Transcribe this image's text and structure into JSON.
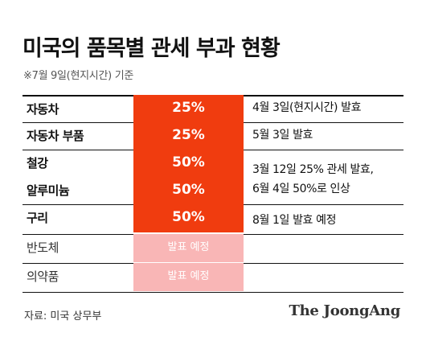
{
  "title": "미국의 품목별 관세 부과 현황",
  "subtitle": "※7월 9일(현지시간) 기준",
  "chart_data": {
    "type": "table",
    "rows": [
      {
        "item": "자동차",
        "rate": "25%",
        "highlight": "#f03c0f"
      },
      {
        "item": "자동차 부품",
        "rate": "25%",
        "highlight": "#f03c0f"
      },
      {
        "item": "철강",
        "rate": "50%",
        "highlight": "#f03c0f"
      },
      {
        "item": "알루미늄",
        "rate": "50%",
        "highlight": "#f03c0f"
      },
      {
        "item": "구리",
        "rate": "50%",
        "highlight": "#f03c0f"
      },
      {
        "item": "반도체",
        "rate": "발표 예정",
        "highlight": "#f9b6b6"
      },
      {
        "item": "의약품",
        "rate": "발표 예정",
        "highlight": "#f9b6b6"
      }
    ],
    "notes": [
      {
        "text": "4월 3일(현지시간) 발효"
      },
      {
        "text": "5월 3일 발효"
      },
      {
        "text": "3월 12일 25% 관세 발효,"
      },
      {
        "text": "6월 4일 50%로 인상"
      },
      {
        "text": "8월 1일 발효 예정"
      }
    ]
  },
  "source": "자료: 미국 상무부",
  "logo": "The JoongAng",
  "colors": {
    "confirmed": "#f03c0f",
    "pending": "#f9b6b6"
  }
}
